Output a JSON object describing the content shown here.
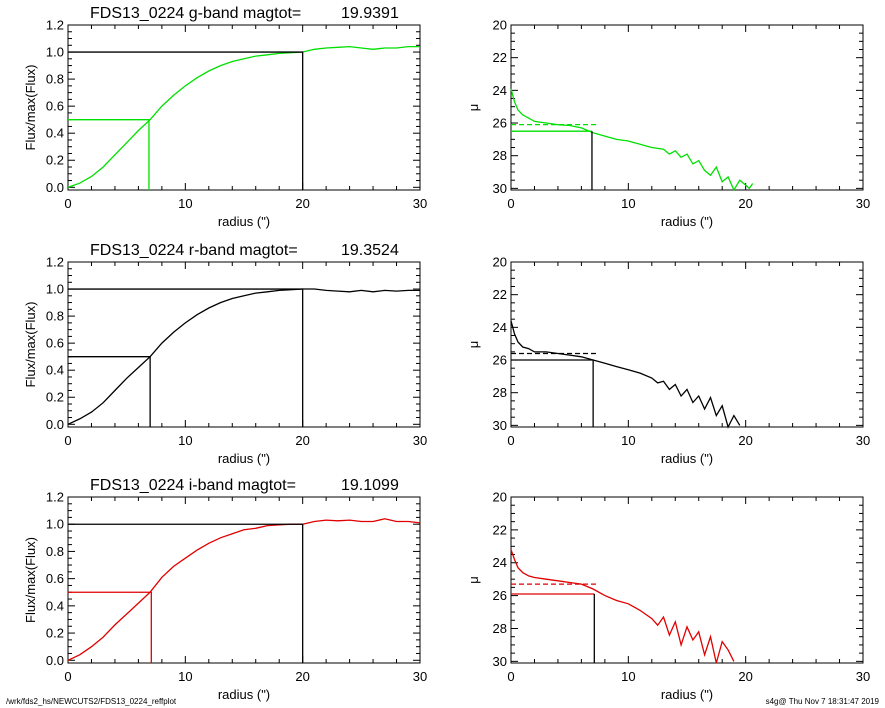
{
  "colors": {
    "g": "#00e000",
    "r": "#000000",
    "i": "#e00000",
    "axis": "#000000"
  },
  "footer": {
    "path": "/wrk/fds2_hs/NEWCUTS2/FDS13_0224_reffplot",
    "stamp": "s4g@  Thu Nov  7 18:31:47 2019"
  },
  "chart_data": [
    {
      "type": "line",
      "band": "g",
      "panel": "growth-curve",
      "title_left": "FDS13_0224 g-band  magtot=",
      "title_value": "19.9391",
      "xlabel": "radius (\")",
      "ylabel": "Flux/max(Flux)",
      "xlim": [
        0,
        30
      ],
      "ylim": [
        -0.02,
        1.2
      ],
      "xticks": [
        0,
        10,
        20,
        30
      ],
      "yticks": [
        "0.0",
        "0.2",
        "0.4",
        "0.6",
        "0.8",
        "1.0",
        "1.2"
      ],
      "series": [
        {
          "color": "g",
          "x": [
            0,
            1,
            2,
            3,
            4,
            5,
            6,
            7,
            8,
            9,
            10,
            11,
            12,
            13,
            14,
            15,
            16,
            17,
            18,
            19,
            20,
            21,
            22,
            23,
            24,
            25,
            26,
            27,
            28,
            29,
            30
          ],
          "y": [
            0.0,
            0.03,
            0.08,
            0.15,
            0.24,
            0.33,
            0.42,
            0.5,
            0.6,
            0.68,
            0.75,
            0.81,
            0.86,
            0.9,
            0.93,
            0.95,
            0.97,
            0.98,
            0.99,
            0.995,
            1.0,
            1.02,
            1.03,
            1.035,
            1.04,
            1.03,
            1.02,
            1.03,
            1.03,
            1.04,
            1.04
          ]
        }
      ],
      "half_light": {
        "x": 6.9,
        "y": 0.5
      },
      "total": {
        "x": 20.0,
        "y": 1.0
      }
    },
    {
      "type": "line",
      "band": "g",
      "panel": "surface-brightness",
      "ylabel": "μ",
      "xlabel": "radius (\")",
      "xlim": [
        0,
        30
      ],
      "ylim": [
        30.1,
        20
      ],
      "xticks": [
        0,
        10,
        20,
        30
      ],
      "yticks": [
        "20",
        "22",
        "24",
        "26",
        "28",
        "30"
      ],
      "series": [
        {
          "color": "g",
          "x": [
            0,
            0.3,
            0.6,
            1,
            1.5,
            2,
            3,
            4,
            5,
            6,
            7,
            8,
            9,
            10,
            11,
            12,
            13,
            13.5,
            14,
            14.5,
            15,
            15.5,
            16,
            16.5,
            17,
            17.5,
            18,
            18.5,
            19,
            19.5,
            20,
            20.3,
            20.6
          ],
          "y": [
            23.9,
            24.7,
            25.2,
            25.5,
            25.7,
            25.9,
            26.0,
            26.1,
            26.15,
            26.3,
            26.6,
            26.8,
            27.0,
            27.1,
            27.3,
            27.5,
            27.6,
            27.9,
            27.7,
            28.1,
            27.9,
            28.5,
            28.3,
            28.9,
            29.2,
            28.7,
            29.6,
            29.3,
            30.1,
            29.5,
            29.8,
            30.0,
            29.7
          ]
        }
      ],
      "dashed_level": 26.1,
      "ref": {
        "x": 6.9,
        "y": 26.5
      }
    },
    {
      "type": "line",
      "band": "r",
      "panel": "growth-curve",
      "title_left": "FDS13_0224 r-band  magtot=",
      "title_value": "19.3524",
      "xlabel": "radius (\")",
      "ylabel": "Flux/max(Flux)",
      "xlim": [
        0,
        30
      ],
      "ylim": [
        -0.02,
        1.2
      ],
      "xticks": [
        0,
        10,
        20,
        30
      ],
      "yticks": [
        "0.0",
        "0.2",
        "0.4",
        "0.6",
        "0.8",
        "1.0",
        "1.2"
      ],
      "series": [
        {
          "color": "r",
          "x": [
            0,
            1,
            2,
            3,
            4,
            5,
            6,
            7,
            8,
            9,
            10,
            11,
            12,
            13,
            14,
            15,
            16,
            17,
            18,
            19,
            20,
            21,
            22,
            23,
            24,
            25,
            26,
            27,
            28,
            29,
            30
          ],
          "y": [
            0.0,
            0.04,
            0.09,
            0.16,
            0.25,
            0.34,
            0.42,
            0.5,
            0.6,
            0.68,
            0.75,
            0.81,
            0.86,
            0.9,
            0.93,
            0.95,
            0.97,
            0.98,
            0.99,
            0.995,
            1.0,
            1.0,
            0.99,
            0.985,
            0.98,
            0.99,
            0.98,
            0.99,
            0.985,
            0.99,
            0.99
          ]
        }
      ],
      "half_light": {
        "x": 7.0,
        "y": 0.5
      },
      "total": {
        "x": 20.0,
        "y": 1.0
      }
    },
    {
      "type": "line",
      "band": "r",
      "panel": "surface-brightness",
      "ylabel": "μ",
      "xlabel": "radius (\")",
      "xlim": [
        0,
        30
      ],
      "ylim": [
        30.1,
        20
      ],
      "xticks": [
        0,
        10,
        20,
        30
      ],
      "yticks": [
        "20",
        "22",
        "24",
        "26",
        "28",
        "30"
      ],
      "series": [
        {
          "color": "r",
          "x": [
            0,
            0.3,
            0.6,
            1,
            1.5,
            2,
            3,
            4,
            5,
            6,
            7,
            8,
            9,
            10,
            11,
            12,
            12.5,
            13,
            13.5,
            14,
            14.5,
            15,
            15.5,
            16,
            16.5,
            17,
            17.5,
            18,
            18.5,
            19,
            19.5
          ],
          "y": [
            23.6,
            24.4,
            24.9,
            25.2,
            25.3,
            25.5,
            25.5,
            25.6,
            25.7,
            25.8,
            26.0,
            26.2,
            26.4,
            26.6,
            26.8,
            27.1,
            27.4,
            27.3,
            27.8,
            27.5,
            28.2,
            27.8,
            28.6,
            28.2,
            29.0,
            28.3,
            29.4,
            28.8,
            30.1,
            29.4,
            30.0
          ]
        }
      ],
      "dashed_level": 25.6,
      "ref": {
        "x": 7.0,
        "y": 26.0
      }
    },
    {
      "type": "line",
      "band": "i",
      "panel": "growth-curve",
      "title_left": "FDS13_0224 i-band  magtot=",
      "title_value": "19.1099",
      "xlabel": "radius (\")",
      "ylabel": "Flux/max(Flux)",
      "xlim": [
        0,
        30
      ],
      "ylim": [
        -0.02,
        1.2
      ],
      "xticks": [
        0,
        10,
        20,
        30
      ],
      "yticks": [
        "0.0",
        "0.2",
        "0.4",
        "0.6",
        "0.8",
        "1.0",
        "1.2"
      ],
      "series": [
        {
          "color": "i",
          "x": [
            0,
            1,
            2,
            3,
            4,
            5,
            6,
            7,
            8,
            9,
            10,
            11,
            12,
            13,
            14,
            15,
            16,
            17,
            18,
            19,
            20,
            21,
            22,
            23,
            24,
            25,
            26,
            27,
            28,
            29,
            30
          ],
          "y": [
            0.0,
            0.04,
            0.1,
            0.17,
            0.26,
            0.34,
            0.42,
            0.5,
            0.61,
            0.69,
            0.75,
            0.81,
            0.86,
            0.9,
            0.93,
            0.96,
            0.97,
            0.99,
            0.995,
            1.0,
            1.0,
            1.02,
            1.03,
            1.025,
            1.03,
            1.02,
            1.02,
            1.04,
            1.02,
            1.02,
            1.01
          ]
        }
      ],
      "half_light": {
        "x": 7.1,
        "y": 0.5
      },
      "total": {
        "x": 20.0,
        "y": 1.0
      }
    },
    {
      "type": "line",
      "band": "i",
      "panel": "surface-brightness",
      "ylabel": "μ",
      "xlabel": "radius (\")",
      "xlim": [
        0,
        30
      ],
      "ylim": [
        30.1,
        20
      ],
      "xticks": [
        0,
        10,
        20,
        30
      ],
      "yticks": [
        "20",
        "22",
        "24",
        "26",
        "28",
        "30"
      ],
      "series": [
        {
          "color": "i",
          "x": [
            0,
            0.3,
            0.6,
            1,
            1.5,
            2,
            3,
            4,
            5,
            6,
            7,
            8,
            9,
            10,
            11,
            12,
            12.5,
            13,
            13.5,
            14,
            14.5,
            15,
            15.5,
            16,
            16.5,
            17,
            17.5,
            18,
            18.5,
            19
          ],
          "y": [
            23.2,
            23.8,
            24.3,
            24.6,
            24.8,
            24.9,
            25.0,
            25.1,
            25.2,
            25.3,
            25.6,
            26.0,
            26.3,
            26.5,
            26.9,
            27.4,
            27.8,
            27.3,
            28.4,
            27.6,
            29.0,
            27.9,
            28.7,
            28.2,
            29.6,
            28.5,
            30.1,
            28.8,
            29.3,
            30.0
          ]
        }
      ],
      "dashed_level": 25.3,
      "ref": {
        "x": 7.1,
        "y": 25.9
      }
    }
  ]
}
